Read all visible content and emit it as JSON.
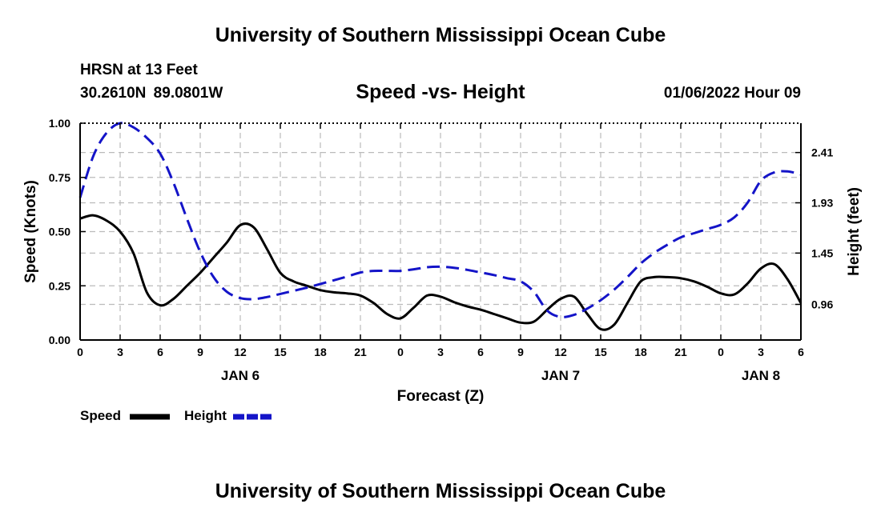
{
  "header": {
    "title": "University of Southern Mississippi Ocean Cube",
    "station": "HRSN at 13 Feet",
    "coords": "30.2610N  89.0801W",
    "subtitle": "Speed -vs- Height",
    "datetime": "01/06/2022 Hour 09"
  },
  "footer": {
    "title": "University of Southern Mississippi Ocean Cube"
  },
  "colors": {
    "speed": "#000000",
    "height": "#1414c8",
    "grid": "#bbbbbb"
  },
  "chart_data": {
    "type": "line",
    "title": "Speed -vs- Height",
    "xlabel": "Forecast (Z)",
    "ylabel": "Speed (Knots)",
    "y2label": "Height (feet)",
    "x_range_hours": [
      0,
      54
    ],
    "x_ticks": [
      0,
      3,
      6,
      9,
      12,
      15,
      18,
      21,
      24,
      27,
      30,
      33,
      36,
      39,
      42,
      45,
      48,
      51,
      54
    ],
    "x_tick_labels": [
      "0",
      "3",
      "6",
      "9",
      "12",
      "15",
      "18",
      "21",
      "0",
      "3",
      "6",
      "9",
      "12",
      "15",
      "18",
      "21",
      "0",
      "3",
      "6"
    ],
    "day_labels": [
      {
        "hour": 12,
        "label": "JAN 6"
      },
      {
        "hour": 36,
        "label": "JAN 7"
      },
      {
        "hour": 51,
        "label": "JAN 8"
      }
    ],
    "ylim": [
      0,
      1.0
    ],
    "y_ticks": [
      0,
      0.25,
      0.5,
      0.75,
      1.0
    ],
    "y_tick_labels": [
      "0.00",
      "0.25",
      "0.50",
      "0.75",
      "1.00"
    ],
    "y2lim": [
      0.62,
      2.69
    ],
    "y2_ticks": [
      0.96,
      1.45,
      1.93,
      2.41
    ],
    "y2_tick_labels": [
      "0.96",
      "1.45",
      "1.93",
      "2.41"
    ],
    "legend": [
      {
        "name": "Speed",
        "style": "solid"
      },
      {
        "name": "Height",
        "style": "dashed"
      }
    ],
    "series": [
      {
        "name": "Speed",
        "axis": "left",
        "x": [
          0,
          1,
          2,
          3,
          4,
          5,
          6,
          7,
          8,
          9,
          10,
          11,
          12,
          13,
          14,
          15,
          16,
          17,
          18,
          19,
          20,
          21,
          22,
          23,
          24,
          25,
          26,
          27,
          28,
          29,
          30,
          31,
          32,
          33,
          34,
          35,
          36,
          37,
          38,
          39,
          40,
          41,
          42,
          43,
          44,
          45,
          46,
          47,
          48,
          49,
          50,
          51,
          52,
          53,
          54
        ],
        "values": [
          0.56,
          0.575,
          0.55,
          0.5,
          0.4,
          0.22,
          0.16,
          0.19,
          0.25,
          0.31,
          0.38,
          0.45,
          0.53,
          0.52,
          0.42,
          0.31,
          0.27,
          0.25,
          0.23,
          0.22,
          0.215,
          0.205,
          0.17,
          0.12,
          0.1,
          0.15,
          0.205,
          0.2,
          0.175,
          0.155,
          0.14,
          0.12,
          0.1,
          0.08,
          0.085,
          0.14,
          0.19,
          0.2,
          0.12,
          0.05,
          0.07,
          0.17,
          0.27,
          0.29,
          0.29,
          0.285,
          0.27,
          0.245,
          0.215,
          0.21,
          0.26,
          0.33,
          0.35,
          0.28,
          0.17
        ]
      },
      {
        "name": "Height",
        "axis": "right",
        "x": [
          0,
          1,
          2,
          3,
          4,
          5,
          6,
          7,
          8,
          9,
          10,
          11,
          12,
          13,
          14,
          15,
          16,
          17,
          18,
          19,
          20,
          21,
          22,
          23,
          24,
          25,
          26,
          27,
          28,
          29,
          30,
          31,
          32,
          33,
          34,
          35,
          36,
          37,
          38,
          39,
          40,
          41,
          42,
          43,
          44,
          45,
          46,
          47,
          48,
          49,
          50,
          51,
          52,
          53,
          54
        ],
        "values": [
          1.98,
          2.38,
          2.6,
          2.69,
          2.65,
          2.55,
          2.4,
          2.12,
          1.78,
          1.46,
          1.22,
          1.08,
          1.02,
          1.01,
          1.03,
          1.06,
          1.09,
          1.12,
          1.155,
          1.19,
          1.225,
          1.265,
          1.28,
          1.28,
          1.28,
          1.295,
          1.315,
          1.32,
          1.31,
          1.29,
          1.265,
          1.24,
          1.21,
          1.18,
          1.08,
          0.9,
          0.84,
          0.86,
          0.92,
          1.0,
          1.1,
          1.22,
          1.35,
          1.45,
          1.53,
          1.6,
          1.64,
          1.68,
          1.72,
          1.79,
          1.93,
          2.14,
          2.22,
          2.23,
          2.2
        ]
      }
    ]
  }
}
